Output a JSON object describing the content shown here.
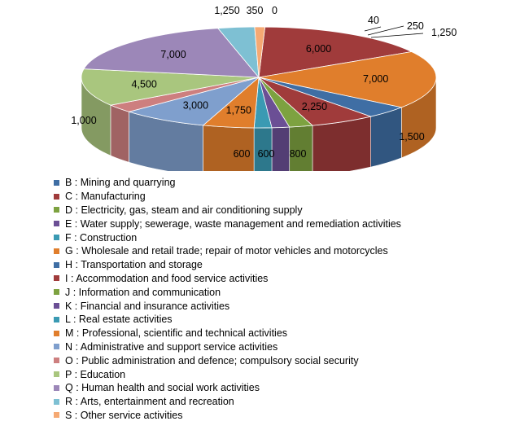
{
  "chart_data": {
    "type": "pie",
    "title": "",
    "slices": [
      {
        "code": "B",
        "label": "B : Mining and quarrying",
        "value": 1500,
        "display": "1,500",
        "color": "#3f6ea4"
      },
      {
        "code": "C",
        "label": "C : Manufacturing",
        "value": 6000,
        "display": "6,000",
        "color": "#a03b3b"
      },
      {
        "code": "D",
        "label": "D : Electricity, gas, steam and air conditioning supply",
        "value": 800,
        "display": "800",
        "color": "#7da240"
      },
      {
        "code": "E",
        "label": "E : Water supply; sewerage, waste management and remediation activities",
        "value": 600,
        "display": "600",
        "color": "#6b4f95"
      },
      {
        "code": "F",
        "label": "F : Construction",
        "value": 600,
        "display": "600",
        "color": "#3a9ab3"
      },
      {
        "code": "G",
        "label": "G : Wholesale and retail trade; repair of motor vehicles and motorcycles",
        "value": 7000,
        "display": "7,000",
        "color": "#e07e2c"
      },
      {
        "code": "H",
        "label": "H : Transportation and storage",
        "value": 1500,
        "display": "1,500",
        "color": "#3f6ea4"
      },
      {
        "code": "I",
        "label": "I : Accommodation and food service activities",
        "value": 2250,
        "display": "2,250",
        "color": "#a03b3b"
      },
      {
        "code": "J",
        "label": "J : Information and communication",
        "value": 800,
        "display": "800",
        "color": "#7da240"
      },
      {
        "code": "K",
        "label": "K : Financial and insurance activities",
        "value": 600,
        "display": "600",
        "color": "#6b4f95"
      },
      {
        "code": "L",
        "label": "L : Real estate activities",
        "value": 600,
        "display": "600",
        "color": "#3a9ab3"
      },
      {
        "code": "M",
        "label": "M : Professional, scientific and technical activities",
        "value": 1750,
        "display": "1,750",
        "color": "#e07e2c"
      },
      {
        "code": "N",
        "label": "N : Administrative and support service activities",
        "value": 3000,
        "display": "3,000",
        "color": "#7f9fcd"
      },
      {
        "code": "O",
        "label": "O : Public administration and defence; compulsory social security",
        "value": 1000,
        "display": "1,000",
        "color": "#cd7f7f"
      },
      {
        "code": "P",
        "label": "P : Education",
        "value": 4500,
        "display": "4,500",
        "color": "#a9c67e"
      },
      {
        "code": "Q",
        "label": "Q : Human health and social work activities",
        "value": 7000,
        "display": "7,000",
        "color": "#9c87b8"
      },
      {
        "code": "R",
        "label": "R : Arts, entertainment and recreation",
        "value": 1250,
        "display": "1,250",
        "color": "#7ec0d3"
      },
      {
        "code": "S",
        "label": "S : Other service activities",
        "value": 350,
        "display": "350",
        "color": "#f5a973"
      },
      {
        "code": "S0",
        "label": "",
        "value": 0,
        "display": "0",
        "color": "#f5a973"
      }
    ],
    "pie_order": [
      "S0",
      "C",
      "G",
      "H",
      "I",
      "J",
      "K",
      "L",
      "M",
      "N",
      "O",
      "P",
      "Q",
      "R",
      "S"
    ],
    "callout_values": [
      "40",
      "250",
      "1,250"
    ],
    "legend_order": [
      "B",
      "C",
      "D",
      "E",
      "F",
      "G",
      "H",
      "I",
      "J",
      "K",
      "L",
      "M",
      "N",
      "O",
      "P",
      "Q",
      "R",
      "S"
    ],
    "legend_position": "bottom",
    "style": "3d-pie"
  }
}
